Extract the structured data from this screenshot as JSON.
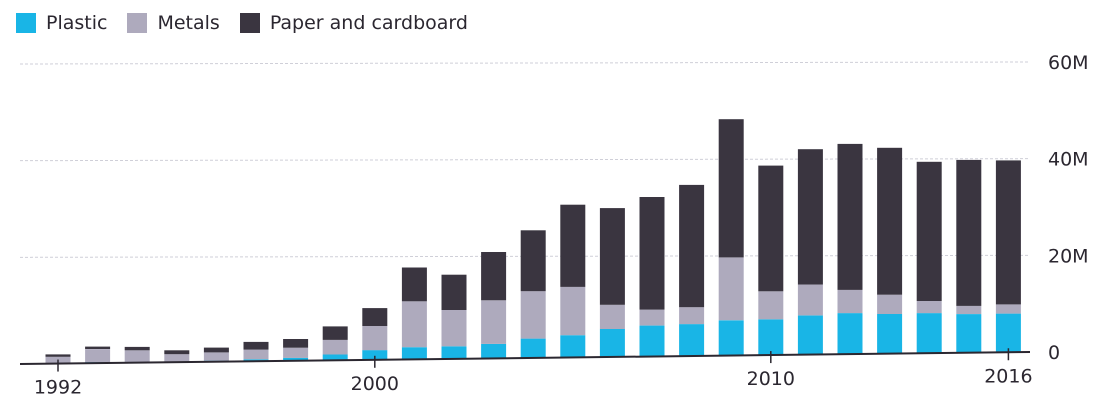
{
  "chart_data": {
    "type": "bar",
    "stacked": true,
    "x": [
      1992,
      1993,
      1994,
      1995,
      1996,
      1997,
      1998,
      1999,
      2000,
      2001,
      2002,
      2003,
      2004,
      2005,
      2006,
      2007,
      2008,
      2009,
      2010,
      2011,
      2012,
      2013,
      2014,
      2015,
      2016
    ],
    "x_tick_labels": [
      "1992",
      "2000",
      "2010",
      "2016"
    ],
    "y_tick_labels": [
      "0",
      "20M",
      "40M",
      "60M"
    ],
    "ylim": [
      0,
      60000000
    ],
    "grid": true,
    "legend_position": "top-left",
    "series": [
      {
        "name": "Plastic",
        "color": "#19b5e6",
        "values": [
          100000,
          200000,
          150000,
          150000,
          200000,
          400000,
          600000,
          1200000,
          2000000,
          2500000,
          2600000,
          3000000,
          4000000,
          4600000,
          5800000,
          6400000,
          6600000,
          7300000,
          7400000,
          8100000,
          8500000,
          8200000,
          8300000,
          8000000,
          8000000
        ]
      },
      {
        "name": "Metals",
        "color": "#aeaabd",
        "values": [
          1300000,
          2700000,
          2400000,
          1500000,
          1700000,
          2000000,
          2100000,
          3000000,
          5000000,
          9500000,
          7500000,
          9000000,
          9800000,
          10000000,
          5000000,
          3300000,
          3500000,
          13000000,
          5800000,
          6400000,
          4800000,
          4000000,
          2500000,
          1700000,
          1900000
        ]
      },
      {
        "name": "Paper and cardboard",
        "color": "#3a3540",
        "values": [
          500000,
          500000,
          700000,
          800000,
          1000000,
          1600000,
          1800000,
          2800000,
          3700000,
          7000000,
          7300000,
          10000000,
          12600000,
          17000000,
          20000000,
          23300000,
          25300000,
          28600000,
          26000000,
          28000000,
          30200000,
          30400000,
          28800000,
          30200000,
          29800000
        ]
      }
    ]
  }
}
